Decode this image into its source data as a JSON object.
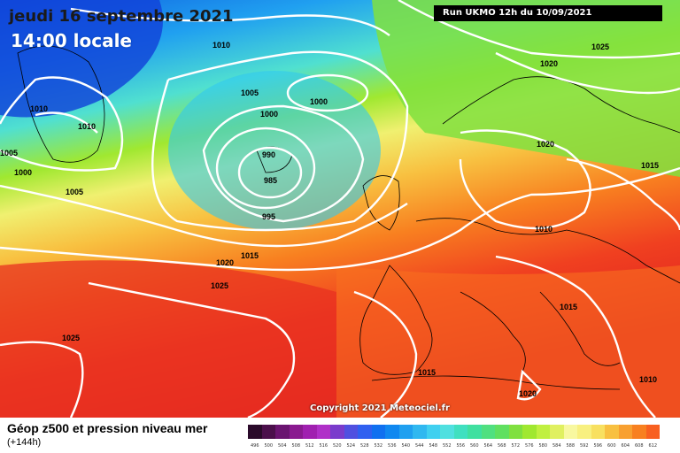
{
  "header": {
    "date_label": "jeudi 16 septembre 2021",
    "time_label": "14:00 locale",
    "run_label": "Run UKMO 12h du 10/09/2021"
  },
  "footer": {
    "title": "Géop z500 et pression niveau mer",
    "subtitle": "(+144h)",
    "copyright": "Copyright 2021 Meteociel.fr"
  },
  "isobars": [
    {
      "value": "1010"
    },
    {
      "value": "1010"
    },
    {
      "value": "1010"
    },
    {
      "value": "1005"
    },
    {
      "value": "1000"
    },
    {
      "value": "1005"
    },
    {
      "value": "1000"
    },
    {
      "value": "1000"
    },
    {
      "value": "1005"
    },
    {
      "value": "990"
    },
    {
      "value": "985"
    },
    {
      "value": "995"
    },
    {
      "value": "1015"
    },
    {
      "value": "1020"
    },
    {
      "value": "1025"
    },
    {
      "value": "1025"
    },
    {
      "value": "1025"
    },
    {
      "value": "1020"
    },
    {
      "value": "1020"
    },
    {
      "value": "1015"
    },
    {
      "value": "1010"
    },
    {
      "value": "1015"
    },
    {
      "value": "1015"
    },
    {
      "value": "1020"
    },
    {
      "value": "1010"
    }
  ],
  "scale": {
    "colors": [
      "#2a0a2a",
      "#4b0f4b",
      "#6a1470",
      "#8a1a90",
      "#a020b0",
      "#b030c8",
      "#7a3ccc",
      "#5050e0",
      "#3060f0",
      "#1070f0",
      "#1088f0",
      "#20a0f0",
      "#30b8f0",
      "#40d0f0",
      "#50e0e0",
      "#40e0c0",
      "#40e0a0",
      "#50e080",
      "#60e060",
      "#80e040",
      "#a0e830",
      "#c0f040",
      "#e0f060",
      "#f8f8a0",
      "#f8f080",
      "#f8e060",
      "#f8c040",
      "#f8a030",
      "#f88020",
      "#f86020",
      "#f04020",
      "#e02020",
      "#c81818",
      "#b01010",
      "#981010",
      "#800808",
      "#680808",
      "#500000",
      "#300000",
      "#100000"
    ],
    "labels": [
      "496",
      "500",
      "504",
      "508",
      "512",
      "516",
      "520",
      "524",
      "528",
      "532",
      "536",
      "540",
      "544",
      "548",
      "552",
      "556",
      "560",
      "564",
      "568",
      "572",
      "576",
      "580",
      "584",
      "588",
      "592",
      "596",
      "600",
      "604",
      "608",
      "612",
      "616"
    ]
  }
}
